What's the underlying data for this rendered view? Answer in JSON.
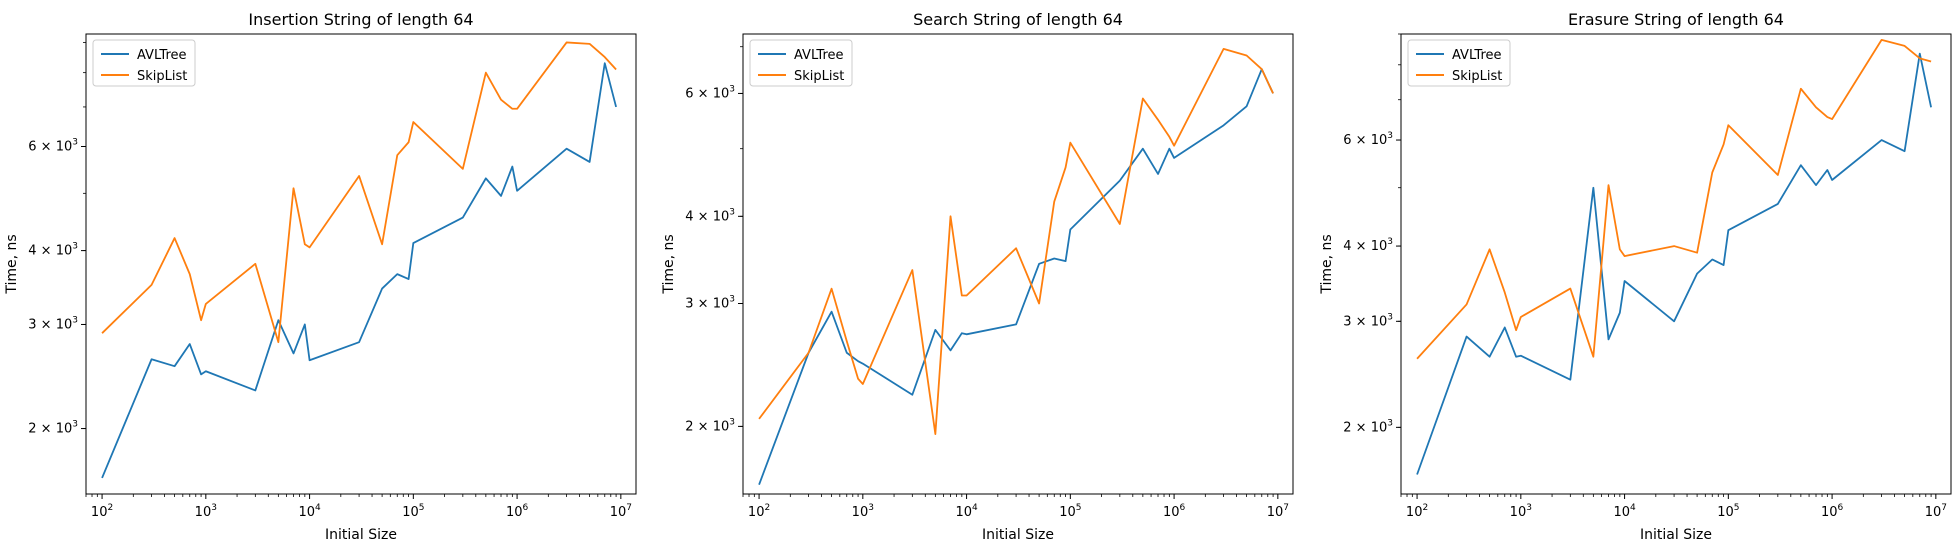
{
  "colors": {
    "AVLTree": "#1f77b4",
    "SkipList": "#ff7f0e"
  },
  "chart_data": [
    {
      "type": "line",
      "title": "Insertion String of length 64",
      "xlabel": "Initial Size",
      "ylabel": "Time, ns",
      "xscale": "log",
      "yscale": "log",
      "xlim": [
        70,
        14000000
      ],
      "ylim": [
        1550,
        9300
      ],
      "xticks": [
        {
          "value": 100,
          "base": "10",
          "exp": "2"
        },
        {
          "value": 1000,
          "base": "10",
          "exp": "3"
        },
        {
          "value": 10000,
          "base": "10",
          "exp": "4"
        },
        {
          "value": 100000,
          "base": "10",
          "exp": "5"
        },
        {
          "value": 1000000,
          "base": "10",
          "exp": "6"
        },
        {
          "value": 10000000,
          "base": "10",
          "exp": "7"
        }
      ],
      "yticks": [
        {
          "value": 2000,
          "mant": "2",
          "base": "10",
          "exp": "3"
        },
        {
          "value": 3000,
          "mant": "3",
          "base": "10",
          "exp": "3"
        },
        {
          "value": 4000,
          "mant": "4",
          "base": "10",
          "exp": "3"
        },
        {
          "value": 6000,
          "mant": "6",
          "base": "10",
          "exp": "3"
        }
      ],
      "grid": false,
      "legend_position": "upper-left",
      "series": [
        {
          "name": "AVLTree",
          "x": [
            100,
            300,
            500,
            700,
            900,
            1000,
            3000,
            5000,
            7000,
            9000,
            10000,
            30000,
            50000,
            70000,
            90000,
            100000,
            300000,
            500000,
            700000,
            900000,
            1000000,
            3000000,
            5000000,
            7000000,
            9000000
          ],
          "y": [
            1650,
            2620,
            2550,
            2780,
            2470,
            2500,
            2320,
            3050,
            2680,
            3000,
            2610,
            2800,
            3450,
            3650,
            3580,
            4120,
            4550,
            5300,
            4950,
            5550,
            5050,
            5950,
            5650,
            8300,
            7000
          ]
        },
        {
          "name": "SkipList",
          "x": [
            100,
            300,
            500,
            700,
            900,
            1000,
            3000,
            5000,
            7000,
            9000,
            10000,
            30000,
            50000,
            70000,
            90000,
            100000,
            300000,
            500000,
            700000,
            900000,
            1000000,
            3000000,
            5000000,
            7000000,
            9000000
          ],
          "y": [
            2900,
            3500,
            4200,
            3650,
            3050,
            3250,
            3800,
            2800,
            5100,
            4100,
            4050,
            5350,
            4100,
            5800,
            6100,
            6600,
            5500,
            8000,
            7200,
            6950,
            6950,
            9000,
            8950,
            8500,
            8100
          ]
        }
      ]
    },
    {
      "type": "line",
      "title": "Search String of length 64",
      "xlabel": "Initial Size",
      "ylabel": "Time, ns",
      "xscale": "log",
      "yscale": "log",
      "xlim": [
        70,
        14000000
      ],
      "ylim": [
        1600,
        7300
      ],
      "xticks": [
        {
          "value": 100,
          "base": "10",
          "exp": "2"
        },
        {
          "value": 1000,
          "base": "10",
          "exp": "3"
        },
        {
          "value": 10000,
          "base": "10",
          "exp": "4"
        },
        {
          "value": 100000,
          "base": "10",
          "exp": "5"
        },
        {
          "value": 1000000,
          "base": "10",
          "exp": "6"
        },
        {
          "value": 10000000,
          "base": "10",
          "exp": "7"
        }
      ],
      "yticks": [
        {
          "value": 2000,
          "mant": "2",
          "base": "10",
          "exp": "3"
        },
        {
          "value": 3000,
          "mant": "3",
          "base": "10",
          "exp": "3"
        },
        {
          "value": 4000,
          "mant": "4",
          "base": "10",
          "exp": "3"
        },
        {
          "value": 6000,
          "mant": "6",
          "base": "10",
          "exp": "3"
        }
      ],
      "grid": false,
      "legend_position": "upper-left",
      "series": [
        {
          "name": "AVLTree",
          "x": [
            100,
            300,
            500,
            700,
            900,
            1000,
            3000,
            5000,
            7000,
            9000,
            10000,
            30000,
            50000,
            70000,
            90000,
            100000,
            300000,
            500000,
            700000,
            900000,
            1000000,
            3000000,
            5000000,
            7000000,
            9000000
          ],
          "y": [
            1650,
            2550,
            2920,
            2550,
            2480,
            2460,
            2220,
            2750,
            2570,
            2720,
            2710,
            2800,
            3420,
            3480,
            3450,
            3830,
            4500,
            5000,
            4600,
            5000,
            4850,
            5400,
            5750,
            6500,
            6000
          ]
        },
        {
          "name": "SkipList",
          "x": [
            100,
            300,
            500,
            700,
            900,
            1000,
            3000,
            5000,
            7000,
            9000,
            10000,
            30000,
            50000,
            70000,
            90000,
            100000,
            300000,
            500000,
            700000,
            900000,
            1000000,
            3000000,
            5000000,
            7000000,
            9000000
          ],
          "y": [
            2050,
            2550,
            3150,
            2650,
            2340,
            2300,
            3350,
            1950,
            4000,
            3080,
            3080,
            3600,
            3000,
            4200,
            4700,
            5100,
            3900,
            5900,
            5500,
            5200,
            5050,
            6950,
            6800,
            6500,
            6000
          ]
        }
      ]
    },
    {
      "type": "line",
      "title": "Erasure String of length 64",
      "xlabel": "Initial Size",
      "ylabel": "Time, ns",
      "xscale": "log",
      "yscale": "log",
      "xlim": [
        70,
        14000000
      ],
      "ylim": [
        1550,
        9000
      ],
      "xticks": [
        {
          "value": 100,
          "base": "10",
          "exp": "2"
        },
        {
          "value": 1000,
          "base": "10",
          "exp": "3"
        },
        {
          "value": 10000,
          "base": "10",
          "exp": "4"
        },
        {
          "value": 100000,
          "base": "10",
          "exp": "5"
        },
        {
          "value": 1000000,
          "base": "10",
          "exp": "6"
        },
        {
          "value": 10000000,
          "base": "10",
          "exp": "7"
        }
      ],
      "yticks": [
        {
          "value": 2000,
          "mant": "2",
          "base": "10",
          "exp": "3"
        },
        {
          "value": 3000,
          "mant": "3",
          "base": "10",
          "exp": "3"
        },
        {
          "value": 4000,
          "mant": "4",
          "base": "10",
          "exp": "3"
        },
        {
          "value": 6000,
          "mant": "6",
          "base": "10",
          "exp": "3"
        }
      ],
      "grid": false,
      "legend_position": "upper-left",
      "series": [
        {
          "name": "AVLTree",
          "x": [
            100,
            300,
            500,
            700,
            900,
            1000,
            3000,
            5000,
            7000,
            9000,
            10000,
            30000,
            50000,
            70000,
            90000,
            100000,
            300000,
            500000,
            700000,
            900000,
            1000000,
            3000000,
            5000000,
            7000000,
            9000000
          ],
          "y": [
            1670,
            2830,
            2620,
            2930,
            2620,
            2630,
            2400,
            5000,
            2800,
            3100,
            3500,
            3000,
            3600,
            3800,
            3720,
            4250,
            4700,
            5450,
            5050,
            5350,
            5150,
            6000,
            5750,
            8350,
            6800
          ]
        },
        {
          "name": "SkipList",
          "x": [
            100,
            300,
            500,
            700,
            900,
            1000,
            3000,
            5000,
            7000,
            9000,
            10000,
            30000,
            50000,
            70000,
            90000,
            100000,
            300000,
            500000,
            700000,
            900000,
            1000000,
            3000000,
            5000000,
            7000000,
            9000000
          ],
          "y": [
            2600,
            3200,
            3950,
            3350,
            2900,
            3050,
            3400,
            2620,
            5050,
            3950,
            3850,
            4000,
            3900,
            5300,
            5900,
            6350,
            5250,
            7300,
            6800,
            6550,
            6500,
            8800,
            8600,
            8200,
            8100
          ]
        }
      ]
    }
  ]
}
